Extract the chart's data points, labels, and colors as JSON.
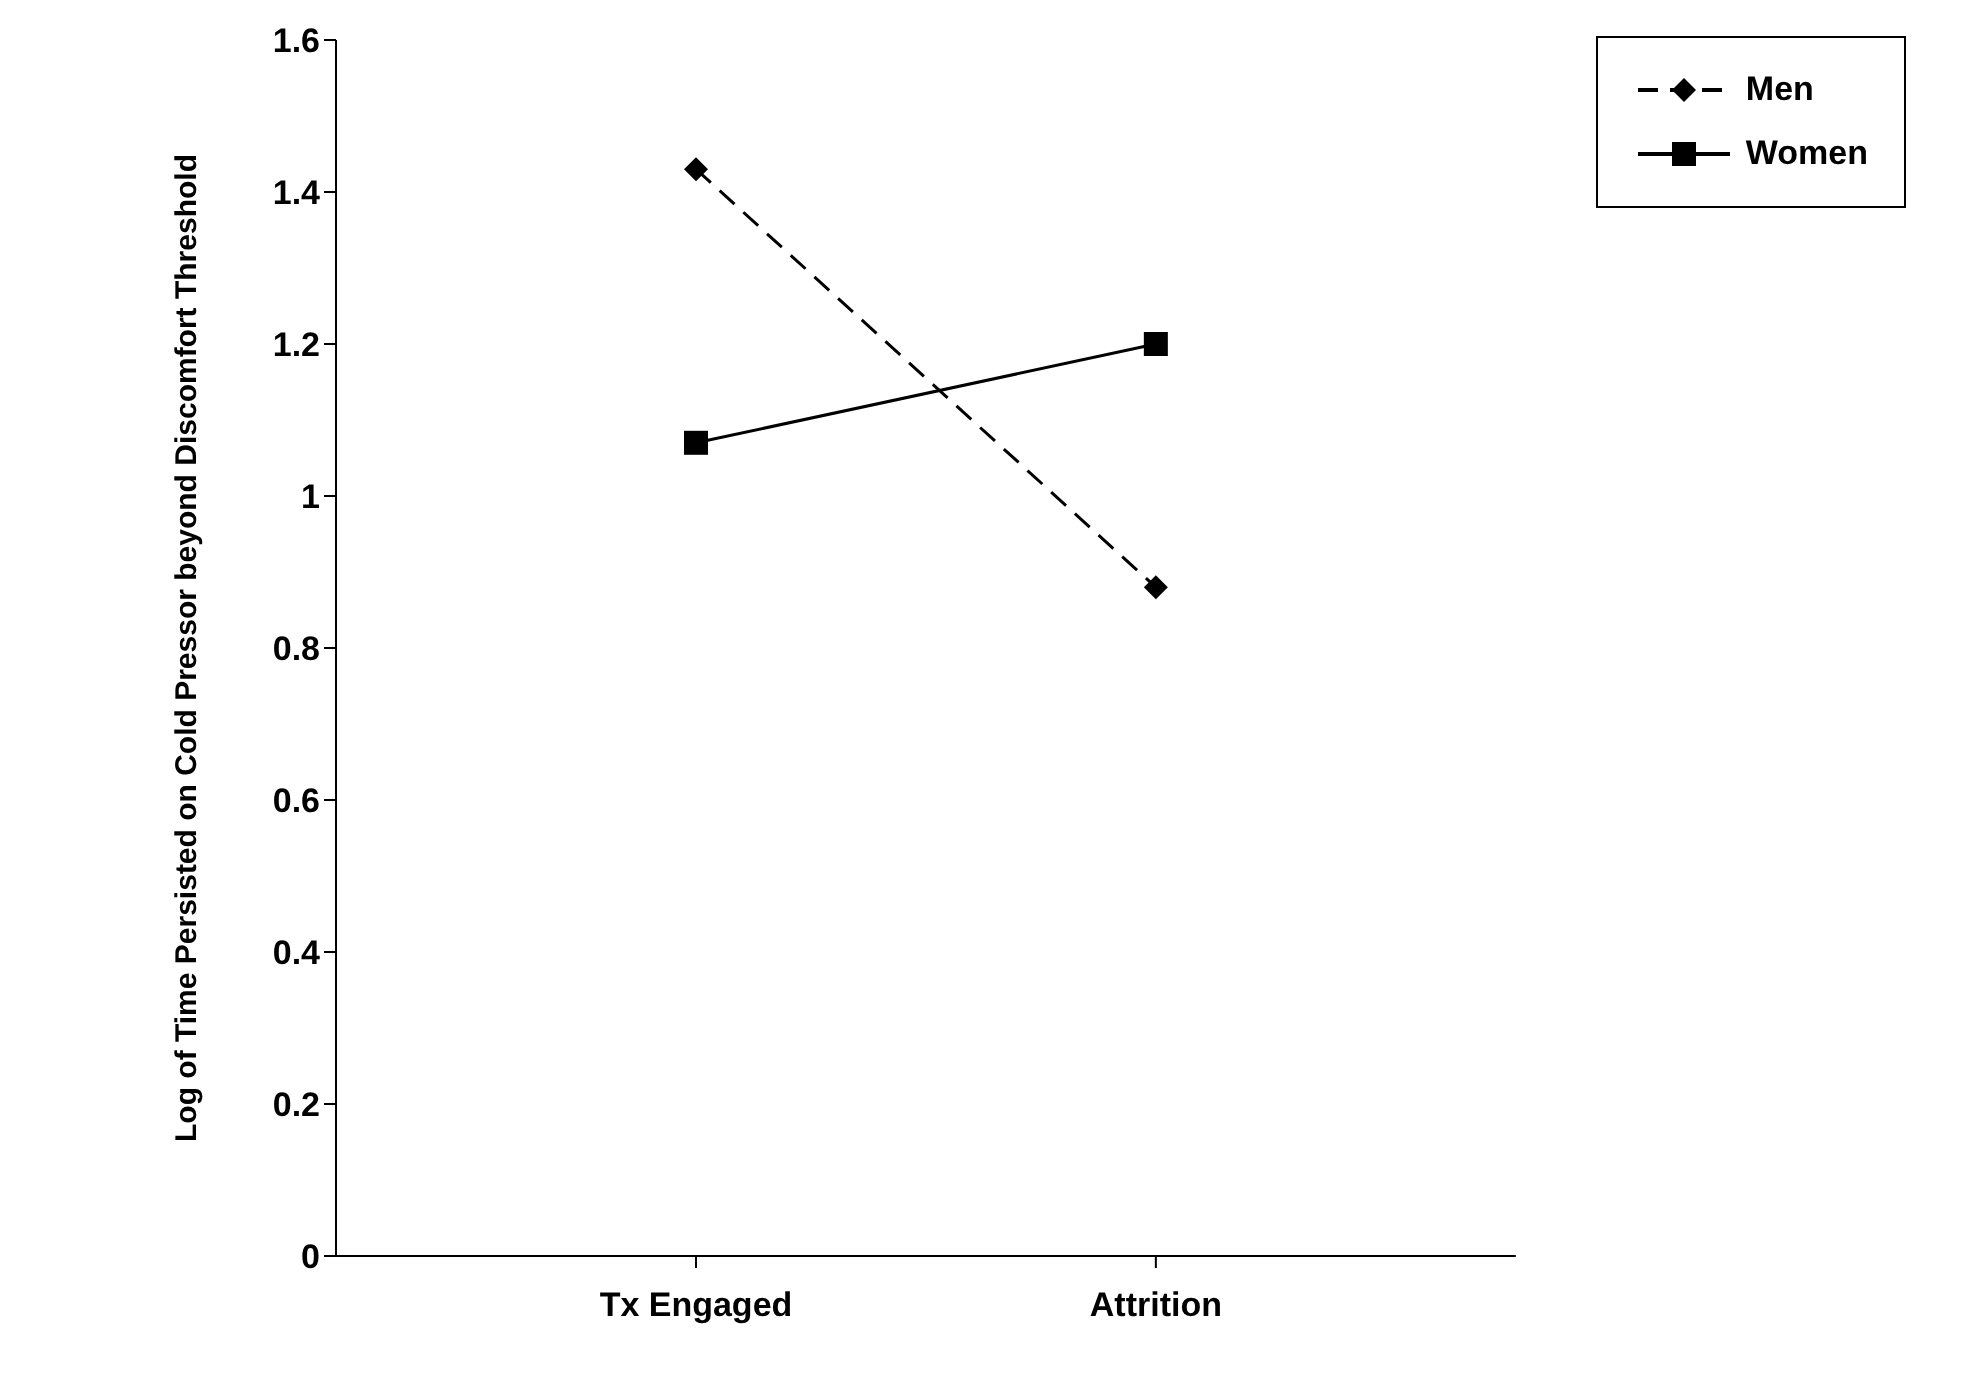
{
  "chart_data": {
    "type": "line",
    "categories": [
      "Tx Engaged",
      "Attrition"
    ],
    "ylabel": "Log of Time Persisted on Cold Pressor beyond Discomfort Threshold",
    "ylim": [
      0,
      1.6
    ],
    "yticks": [
      0,
      0.2,
      0.4,
      0.6,
      0.8,
      1,
      1.2,
      1.4,
      1.6
    ],
    "grid": false,
    "legend": "top right",
    "series": [
      {
        "name": "Men",
        "color": "#000000",
        "values": [
          1.43,
          0.88
        ],
        "marker": "diamond",
        "line_style": "dashed"
      },
      {
        "name": "Women",
        "color": "#000000",
        "values": [
          1.07,
          1.2
        ],
        "marker": "square",
        "line_style": "solid"
      }
    ]
  }
}
